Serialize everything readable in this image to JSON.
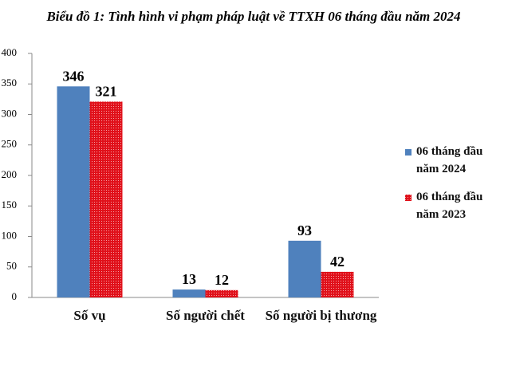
{
  "chart_data": {
    "type": "bar",
    "title": "Biểu đồ 1: Tình hình vi phạm pháp luật về TTXH 06 tháng đầu năm 2024",
    "categories": [
      "Số vụ",
      "Số người chết",
      "Số người bị thương"
    ],
    "series": [
      {
        "name": "06 tháng đầu năm 2024",
        "color": "#4f81bd",
        "values": [
          346,
          13,
          93
        ]
      },
      {
        "name": "06 tháng đầu năm 2023",
        "color": "#e0101a",
        "values": [
          321,
          12,
          42
        ]
      }
    ],
    "ylim": [
      0,
      400
    ],
    "yticks": [
      0,
      50,
      100,
      150,
      200,
      250,
      300,
      350,
      400
    ],
    "grid": false,
    "legend": "right"
  }
}
